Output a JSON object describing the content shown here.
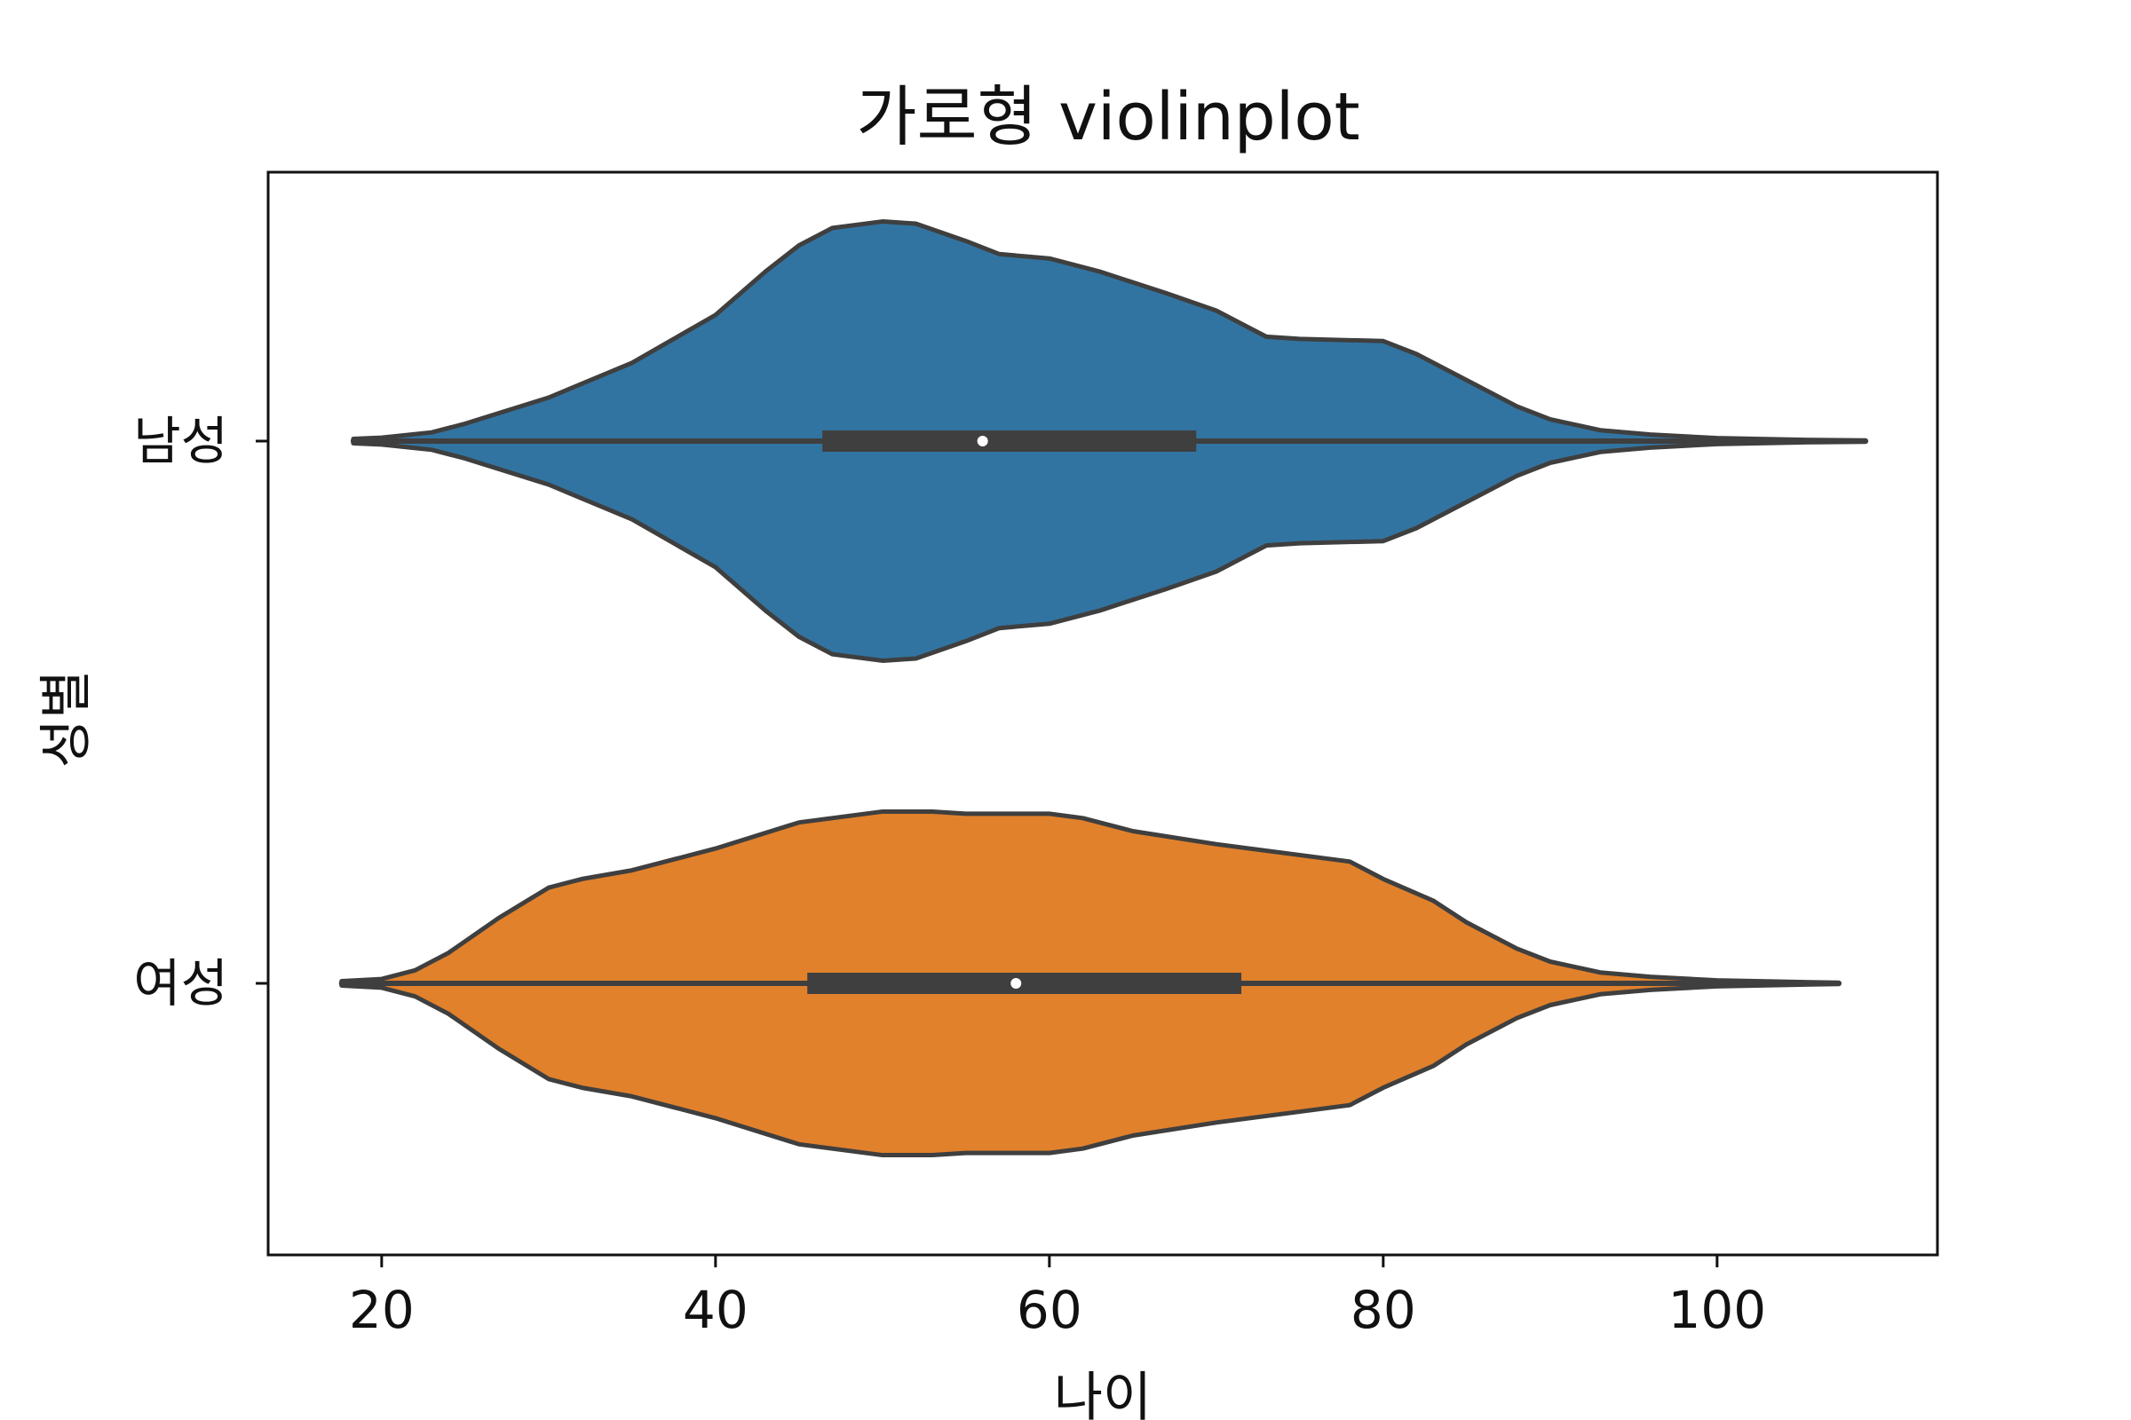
{
  "chart_data": {
    "type": "violin",
    "orientation": "horizontal",
    "title": "가로형 violinplot",
    "xlabel": "나이",
    "ylabel": "성별",
    "xlim": [
      13.2,
      113.2
    ],
    "xticks": [
      20,
      40,
      60,
      80,
      100
    ],
    "categories": [
      "남성",
      "여성"
    ],
    "grid": false,
    "series": [
      {
        "name": "남성",
        "color": "#3274a1",
        "min": 18.3,
        "max": 108.9,
        "whisker": [
          23.5,
          96
        ],
        "q1": 46.4,
        "median": 56,
        "q3": 68.8,
        "density_x": [
          18.3,
          20,
          23,
          25,
          30,
          35,
          40,
          43,
          45,
          47,
          50,
          52,
          55,
          57,
          60,
          63,
          67,
          70,
          73,
          75,
          80,
          82,
          85,
          88,
          90,
          93,
          96,
          100,
          105,
          108.9
        ],
        "density_w": [
          0.005,
          0.008,
          0.02,
          0.04,
          0.1,
          0.18,
          0.29,
          0.39,
          0.45,
          0.49,
          0.505,
          0.5,
          0.46,
          0.43,
          0.42,
          0.39,
          0.34,
          0.3,
          0.24,
          0.235,
          0.23,
          0.2,
          0.14,
          0.08,
          0.05,
          0.025,
          0.015,
          0.007,
          0.003,
          0.0015
        ]
      },
      {
        "name": "여성",
        "color": "#e1812c",
        "min": 17.6,
        "max": 107.3,
        "whisker": [
          23.8,
          96
        ],
        "q1": 45.5,
        "median": 58,
        "q3": 71.5,
        "density_x": [
          17.6,
          20,
          22,
          24,
          27,
          30,
          32,
          35,
          40,
          45,
          50,
          53,
          55,
          57,
          60,
          62,
          65,
          70,
          75,
          78,
          80,
          83,
          85,
          88,
          90,
          93,
          96,
          100,
          105,
          107.3
        ],
        "density_w": [
          0.005,
          0.01,
          0.03,
          0.07,
          0.15,
          0.22,
          0.24,
          0.26,
          0.31,
          0.37,
          0.395,
          0.395,
          0.39,
          0.39,
          0.39,
          0.38,
          0.35,
          0.32,
          0.295,
          0.28,
          0.24,
          0.19,
          0.14,
          0.08,
          0.05,
          0.025,
          0.015,
          0.007,
          0.003,
          0.0015
        ]
      }
    ]
  }
}
